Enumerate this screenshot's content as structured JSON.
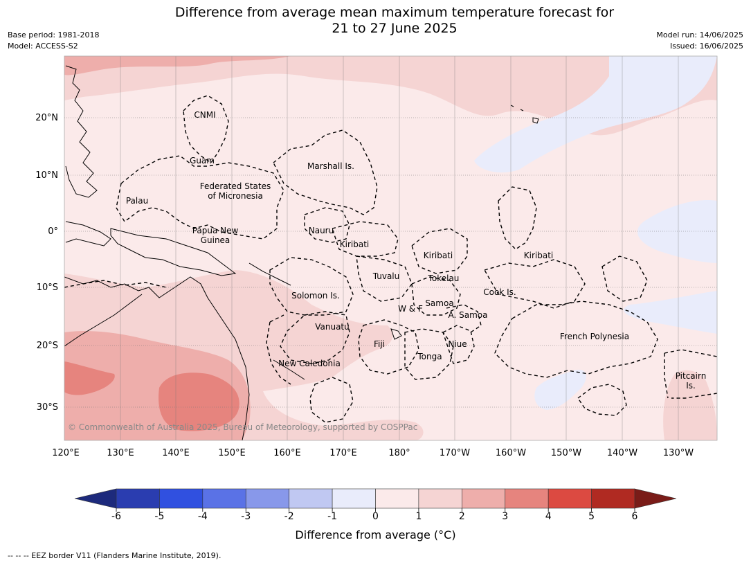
{
  "title": {
    "line1": "Difference from average mean maximum temperature forecast for",
    "line2": "21 to 27 June 2025"
  },
  "meta": {
    "base_period": "Base period: 1981-2018",
    "model": "Model: ACCESS-S2",
    "model_run": "Model run: 14/06/2025",
    "issued": "Issued: 16/06/2025"
  },
  "map": {
    "lon_labels": [
      "120°E",
      "130°E",
      "140°E",
      "150°E",
      "160°E",
      "170°E",
      "180°",
      "170°W",
      "160°W",
      "150°W",
      "140°W",
      "130°W"
    ],
    "lat_labels": [
      "20°N",
      "10°N",
      "0°",
      "10°S",
      "20°S",
      "30°S"
    ],
    "places": [
      {
        "id": "cnmi",
        "lines": [
          "CNMI"
        ]
      },
      {
        "id": "guam",
        "lines": [
          "Guam"
        ]
      },
      {
        "id": "marshall",
        "lines": [
          "Marshall Is."
        ]
      },
      {
        "id": "fsm",
        "lines": [
          "Federated States",
          "of Micronesia"
        ]
      },
      {
        "id": "palau",
        "lines": [
          "Palau"
        ]
      },
      {
        "id": "png",
        "lines": [
          "Papua New",
          "Guinea"
        ]
      },
      {
        "id": "nauru",
        "lines": [
          "Nauru"
        ]
      },
      {
        "id": "kiribati-w",
        "lines": [
          "Kiribati"
        ]
      },
      {
        "id": "kiribati-c",
        "lines": [
          "Kiribati"
        ]
      },
      {
        "id": "kiribati-e",
        "lines": [
          "Kiribati"
        ]
      },
      {
        "id": "tuvalu",
        "lines": [
          "Tuvalu"
        ]
      },
      {
        "id": "tokelau",
        "lines": [
          "Tokelau"
        ]
      },
      {
        "id": "solomon",
        "lines": [
          "Solomon Is."
        ]
      },
      {
        "id": "cook",
        "lines": [
          "Cook Is."
        ]
      },
      {
        "id": "samoa",
        "lines": [
          "Samoa"
        ]
      },
      {
        "id": "wf",
        "lines": [
          "W & F"
        ]
      },
      {
        "id": "asamoa",
        "lines": [
          "A. Samoa"
        ]
      },
      {
        "id": "vanuatu",
        "lines": [
          "Vanuatu"
        ]
      },
      {
        "id": "fiji",
        "lines": [
          "Fiji"
        ]
      },
      {
        "id": "niue",
        "lines": [
          "Niue"
        ]
      },
      {
        "id": "tonga",
        "lines": [
          "Tonga"
        ]
      },
      {
        "id": "frpoly",
        "lines": [
          "French Polynesia"
        ]
      },
      {
        "id": "newcal",
        "lines": [
          "New Caledonia"
        ]
      },
      {
        "id": "pitcairn",
        "lines": [
          "Pitcairn",
          "Is."
        ]
      }
    ],
    "copyright": "© Commonwealth of Australia 2025, Bureau of Meteorology, supported by COSPPac"
  },
  "colorbar": {
    "ticks": [
      "-6",
      "-5",
      "-4",
      "-3",
      "-2",
      "-1",
      "0",
      "1",
      "2",
      "3",
      "4",
      "5",
      "6"
    ],
    "colors": [
      "#2a3db0",
      "#3050e0",
      "#5a72e6",
      "#8898ea",
      "#c0c8f2",
      "#e9ecfb",
      "#fbeaea",
      "#f5d4d3",
      "#eeaeab",
      "#e6847e",
      "#dc4a41",
      "#b02a22"
    ],
    "under_color": "#1d2a7c",
    "over_color": "#7a1c18",
    "label": "Difference from average (°C)"
  },
  "footnote": "--  --  -- EEZ border V11 (Flanders Marine Institute, 2019)."
}
